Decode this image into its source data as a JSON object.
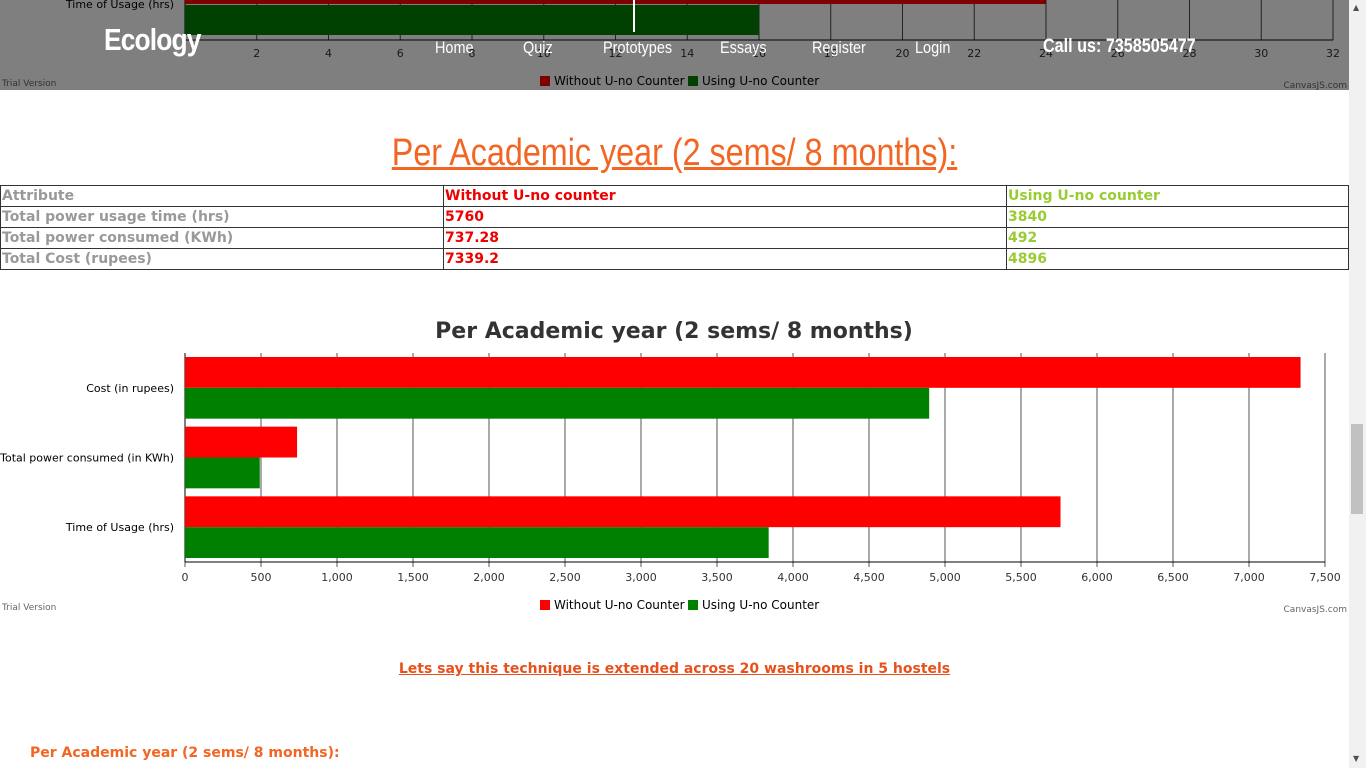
{
  "nav": {
    "brand": "Ecology",
    "links": [
      "Home",
      "Quiz",
      "Prototypes",
      "Essays",
      "Register",
      "Login"
    ],
    "call": "Call us: 7358505477"
  },
  "top_chart": {
    "category_label": "Time of Usage (hrs)",
    "ticks": [
      "2",
      "4",
      "6",
      "8",
      "10",
      "12",
      "14",
      "16",
      "18",
      "20",
      "22",
      "24",
      "26",
      "28",
      "30",
      "32"
    ],
    "without_value": 24,
    "using_value": 16,
    "xmax": 32,
    "legend": [
      "Without U-no Counter",
      "Using U-no Counter"
    ],
    "trial": "Trial Version",
    "credit": "CanvasJS.com"
  },
  "section": {
    "title": "Per Academic year (2 sems/ 8 months):"
  },
  "table": {
    "headers": [
      "Attribute",
      "Without U-no counter",
      "Using U-no counter"
    ],
    "rows": [
      [
        "Total power usage time (hrs)",
        "5760",
        "3840"
      ],
      [
        "Total power consumed (KWh)",
        "737.28",
        "492"
      ],
      [
        "Total Cost (rupees)",
        "7339.2",
        "4896"
      ]
    ]
  },
  "chart_data": {
    "type": "bar",
    "orientation": "horizontal",
    "title": "Per Academic year (2 sems/ 8 months)",
    "categories": [
      "Cost (in rupees)",
      "Total power consumed (in KWh)",
      "Time of Usage (hrs)"
    ],
    "series": [
      {
        "name": "Without U-no Counter",
        "color": "#ff0000",
        "values": [
          7339.2,
          737.28,
          5760
        ]
      },
      {
        "name": "Using U-no Counter",
        "color": "#008000",
        "values": [
          4896,
          492,
          3840
        ]
      }
    ],
    "xlim": [
      0,
      7500
    ],
    "ticks": [
      "0",
      "500",
      "1,000",
      "1,500",
      "2,000",
      "2,500",
      "3,000",
      "3,500",
      "4,000",
      "4,500",
      "5,000",
      "5,500",
      "6,000",
      "6,500",
      "7,000",
      "7,500"
    ],
    "grid": true,
    "legend_position": "bottom",
    "trial": "Trial Version",
    "credit": "CanvasJS.com"
  },
  "bottom": {
    "extension_text": "Lets say this technique is extended across 20 washrooms in 5 hostels",
    "subtitle": "Per Academic year (2 sems/ 8 months):"
  }
}
